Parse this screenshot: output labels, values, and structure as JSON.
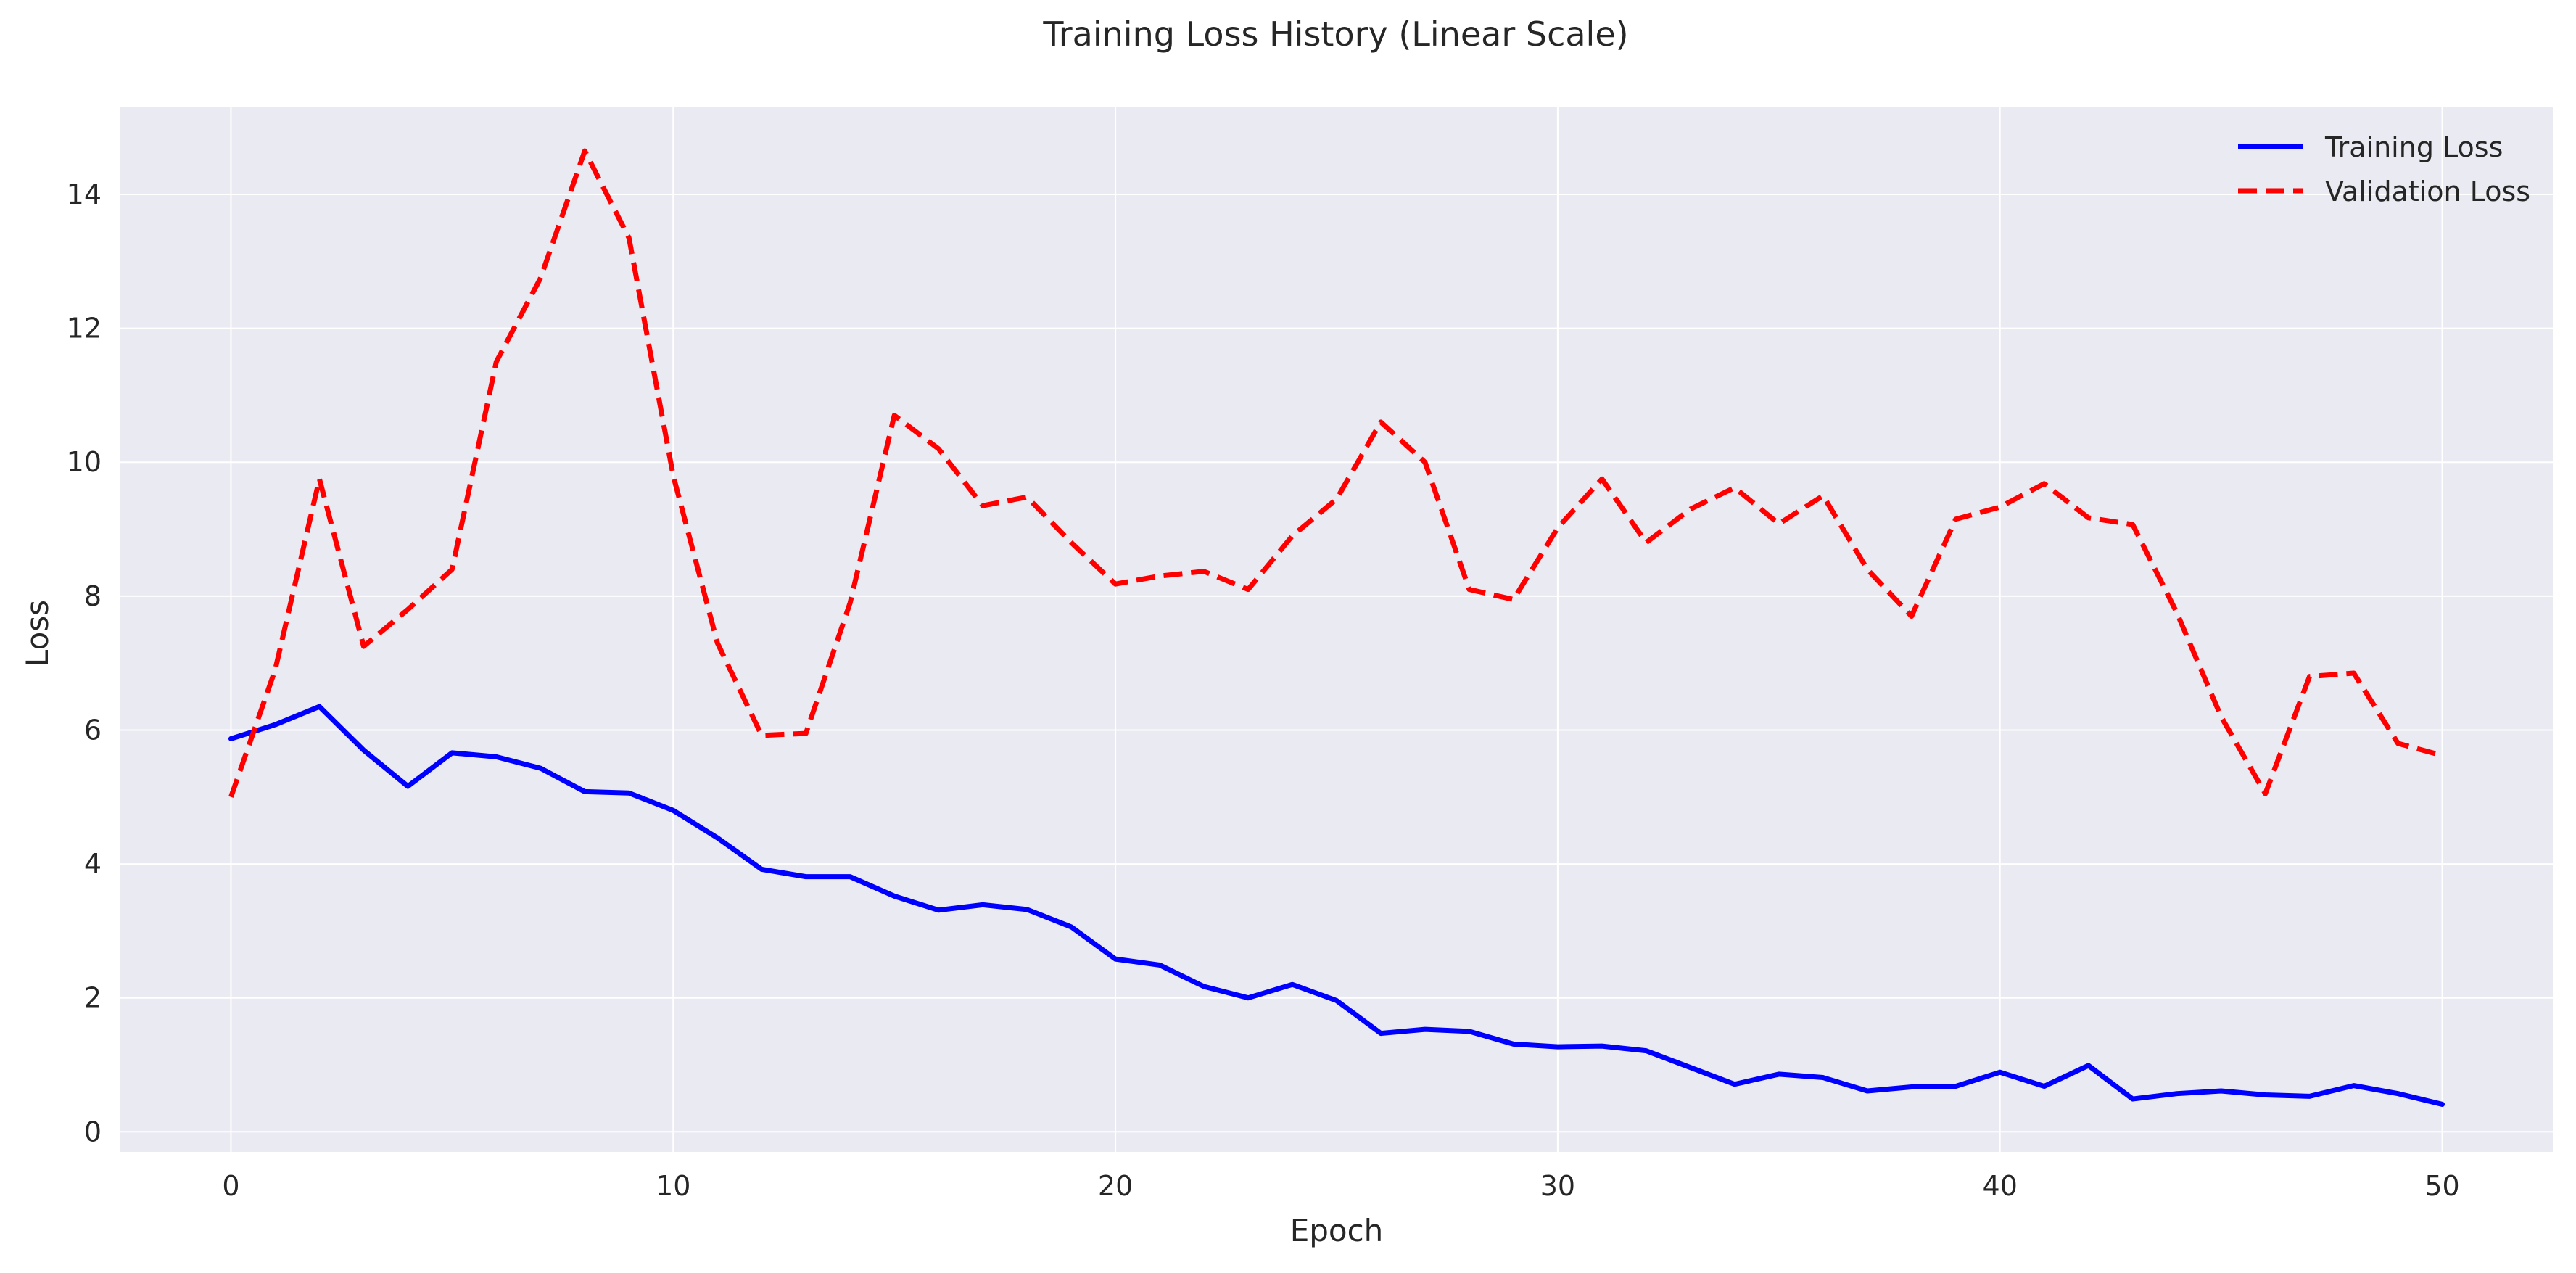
{
  "chart_data": {
    "type": "line",
    "title": "Training Loss History (Linear Scale)",
    "xlabel": "Epoch",
    "ylabel": "Loss",
    "xlim": [
      -2.5,
      52.5
    ],
    "ylim": [
      -0.3,
      15.3
    ],
    "xticks": [
      0,
      10,
      20,
      30,
      40,
      50
    ],
    "yticks": [
      0,
      2,
      4,
      6,
      8,
      10,
      12,
      14
    ],
    "grid": true,
    "legend_position": "top-right",
    "x": [
      0,
      1,
      2,
      3,
      4,
      5,
      6,
      7,
      8,
      9,
      10,
      11,
      12,
      13,
      14,
      15,
      16,
      17,
      18,
      19,
      20,
      21,
      22,
      23,
      24,
      25,
      26,
      27,
      28,
      29,
      30,
      31,
      32,
      33,
      34,
      35,
      36,
      37,
      38,
      39,
      40,
      41,
      42,
      43,
      44,
      45,
      46,
      47,
      48,
      49,
      50
    ],
    "series": [
      {
        "name": "Training Loss",
        "color": "#0000ff",
        "style": "solid",
        "values": [
          5.87,
          6.08,
          6.35,
          5.7,
          5.16,
          5.66,
          5.6,
          5.43,
          5.08,
          5.06,
          4.8,
          4.39,
          3.92,
          3.81,
          3.81,
          3.52,
          3.31,
          3.39,
          3.32,
          3.06,
          2.58,
          2.49,
          2.17,
          2.0,
          2.2,
          1.96,
          1.47,
          1.53,
          1.5,
          1.31,
          1.27,
          1.28,
          1.21,
          0.96,
          0.71,
          0.86,
          0.81,
          0.61,
          0.67,
          0.68,
          0.89,
          0.68,
          0.99,
          0.49,
          0.57,
          0.61,
          0.55,
          0.53,
          0.69,
          0.57,
          0.41
        ]
      },
      {
        "name": "Validation Loss",
        "color": "#ff0000",
        "style": "dashed",
        "values": [
          5.0,
          6.9,
          9.75,
          7.25,
          7.8,
          8.4,
          11.5,
          12.75,
          14.65,
          13.35,
          9.8,
          7.3,
          5.92,
          5.95,
          7.9,
          10.7,
          10.2,
          9.35,
          9.48,
          8.8,
          8.18,
          8.3,
          8.37,
          8.1,
          8.9,
          9.45,
          10.6,
          10.0,
          8.1,
          7.95,
          9.02,
          9.75,
          8.8,
          9.3,
          9.62,
          9.08,
          9.5,
          8.4,
          7.7,
          9.15,
          9.33,
          9.68,
          9.17,
          9.07,
          7.75,
          6.2,
          5.05,
          6.8,
          6.85,
          5.8,
          5.62
        ]
      }
    ]
  }
}
